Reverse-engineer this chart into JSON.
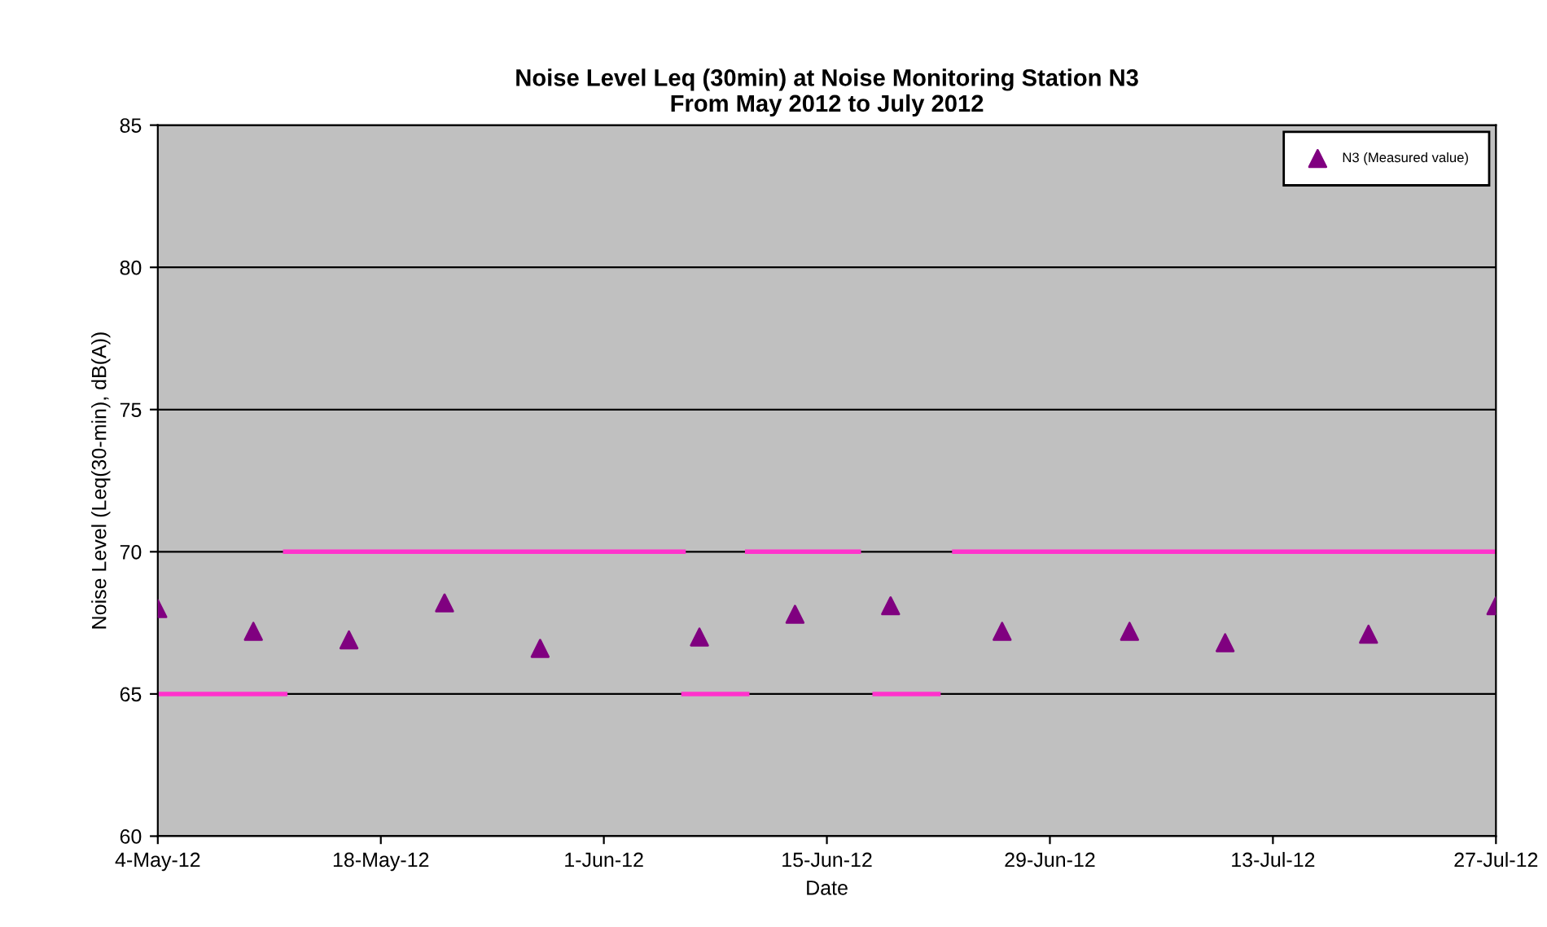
{
  "chart_data": {
    "type": "scatter",
    "title": "Noise Level Leq (30min) at Noise Monitoring Station N3\nFrom May 2012 to July 2012",
    "xlabel": "Date",
    "ylabel": "Noise Level (Leq(30-min), dB(A))",
    "series": [
      {
        "name": "N3 (Measured value)",
        "color": "#800080",
        "marker": "triangle",
        "x": [
          "2012-05-04",
          "2012-05-10",
          "2012-05-16",
          "2012-05-22",
          "2012-05-28",
          "2012-06-07",
          "2012-06-13",
          "2012-06-19",
          "2012-06-26",
          "2012-07-04",
          "2012-07-10",
          "2012-07-19",
          "2012-07-27"
        ],
        "values": [
          68.0,
          67.2,
          66.9,
          68.2,
          66.6,
          67.0,
          67.8,
          68.1,
          67.2,
          67.2,
          66.8,
          67.1,
          68.1
        ]
      },
      {
        "type": "line",
        "color": "#ff33cc",
        "marker": "none",
        "x": [
          "2012-05-04",
          "2012-05-12"
        ],
        "values": [
          65,
          65
        ]
      },
      {
        "type": "line",
        "color": "#ff33cc",
        "marker": "none",
        "x": [
          "2012-05-12",
          "2012-06-06"
        ],
        "values": [
          70,
          70
        ]
      },
      {
        "type": "line",
        "color": "#ff33cc",
        "marker": "none",
        "x": [
          "2012-06-06",
          "2012-06-10"
        ],
        "values": [
          65,
          65
        ]
      },
      {
        "type": "line",
        "color": "#ff33cc",
        "marker": "none",
        "x": [
          "2012-06-10",
          "2012-06-17"
        ],
        "values": [
          70,
          70
        ]
      },
      {
        "type": "line",
        "color": "#ff33cc",
        "marker": "none",
        "x": [
          "2012-06-18",
          "2012-06-22"
        ],
        "values": [
          65,
          65
        ]
      },
      {
        "type": "line",
        "color": "#ff33cc",
        "marker": "none",
        "x": [
          "2012-06-23",
          "2012-07-27"
        ],
        "values": [
          70,
          70
        ]
      }
    ],
    "xlim": [
      "2012-05-04",
      "2012-07-27"
    ],
    "xticks": [
      {
        "value": "2012-05-04",
        "label": "4-May-12"
      },
      {
        "value": "2012-05-18",
        "label": "18-May-12"
      },
      {
        "value": "2012-06-01",
        "label": "1-Jun-12"
      },
      {
        "value": "2012-06-15",
        "label": "15-Jun-12"
      },
      {
        "value": "2012-06-29",
        "label": "29-Jun-12"
      },
      {
        "value": "2012-07-13",
        "label": "13-Jul-12"
      },
      {
        "value": "2012-07-27",
        "label": "27-Jul-12"
      }
    ],
    "ylim": [
      60,
      85
    ],
    "yticks": [
      60,
      65,
      70,
      75,
      80,
      85
    ],
    "grid": "y",
    "legend": "top right"
  }
}
